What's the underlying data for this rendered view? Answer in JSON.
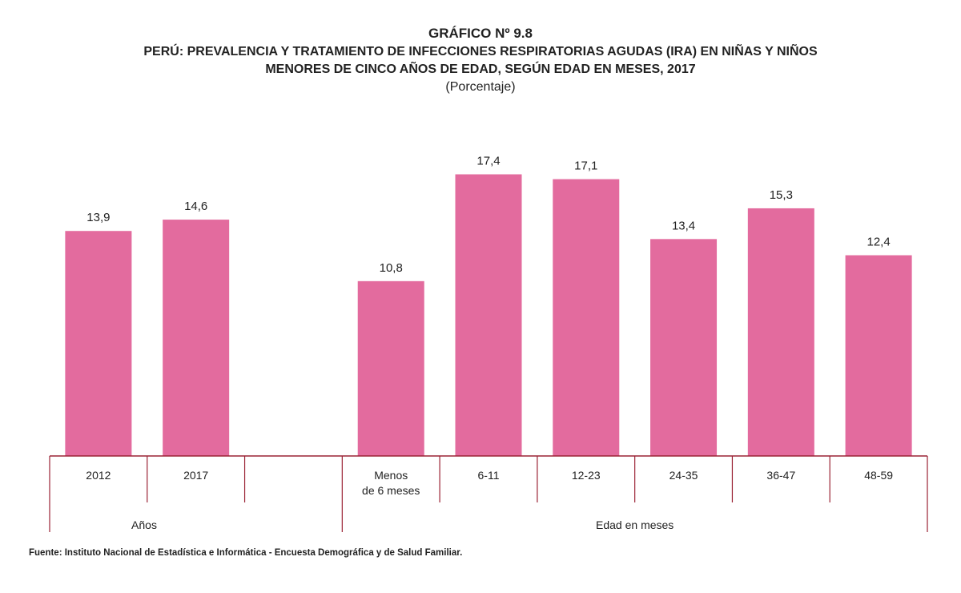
{
  "header": {
    "chart_number": "GRÁFICO Nº 9.8",
    "title_line1": "PERÚ: PREVALENCIA Y TRATAMIENTO DE INFECCIONES RESPIRATORIAS AGUDAS (IRA) EN NIÑAS Y NIÑOS",
    "title_line2": "MENORES DE CINCO AÑOS DE EDAD, SEGÚN EDAD EN MESES, 2017",
    "subtitle": "(Porcentaje)"
  },
  "source": "Fuente: Instituto Nacional de Estadística e Informática - Encuesta Demográfica y de Salud Familiar.",
  "colors": {
    "bar": "#e36b9e",
    "axis": "#9b2335",
    "text": "#222222"
  },
  "chart_data": {
    "type": "bar",
    "title": "PERÚ: PREVALENCIA Y TRATAMIENTO DE INFECCIONES RESPIRATORIAS AGUDAS (IRA) EN NIÑAS Y NIÑOS MENORES DE CINCO AÑOS DE EDAD, SEGÚN EDAD EN MESES, 2017",
    "subtitle": "(Porcentaje)",
    "categories": [
      "2012",
      "2017",
      "",
      "Menos de 6 meses",
      "6-11",
      "12-23",
      "24-35",
      "36-47",
      "48-59"
    ],
    "category_lines": [
      [
        "2012"
      ],
      [
        "2017"
      ],
      [],
      [
        "Menos",
        "de 6 meses"
      ],
      [
        "6-11"
      ],
      [
        "12-23"
      ],
      [
        "24-35"
      ],
      [
        "36-47"
      ],
      [
        "48-59"
      ]
    ],
    "values": [
      13.9,
      14.6,
      null,
      10.8,
      17.4,
      17.1,
      13.4,
      15.3,
      12.4
    ],
    "value_labels": [
      "13,9",
      "14,6",
      "",
      "10,8",
      "17,4",
      "17,1",
      "13,4",
      "15,3",
      "12,4"
    ],
    "groups": [
      {
        "label": "Años",
        "from": 0,
        "to": 2
      },
      {
        "label": "Edad en meses",
        "from": 3,
        "to": 8
      }
    ],
    "ylim": [
      0,
      20
    ],
    "grid": false,
    "legend": "none"
  }
}
